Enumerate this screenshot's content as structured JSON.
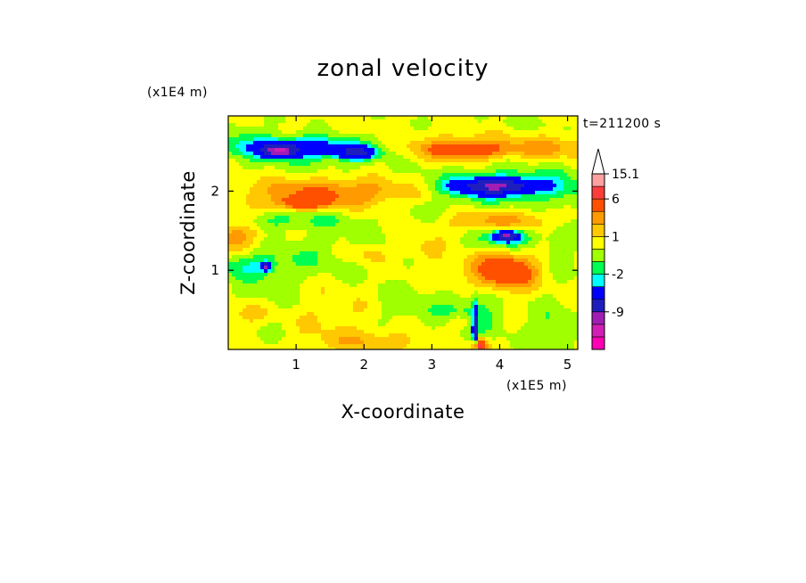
{
  "chart_data": {
    "type": "heatmap",
    "title": "zonal velocity",
    "xlabel": "X-coordinate",
    "ylabel": "Z-coordinate",
    "x_unit": "(x1E5 m)",
    "y_unit": "(x1E4 m)",
    "time_label": "t=211200 s",
    "xlim": [
      0,
      5.15
    ],
    "ylim": [
      0,
      2.95
    ],
    "x_ticks": [
      1,
      2,
      3,
      4,
      5
    ],
    "y_ticks": [
      1,
      2
    ],
    "colorbar": {
      "levels": [
        -15,
        -12,
        -9,
        -6,
        -3,
        -2,
        -1,
        0,
        1,
        2,
        3,
        6,
        9,
        12,
        15.1
      ],
      "labels": [
        "15.1",
        "6",
        "1",
        "-2",
        "-9"
      ],
      "colors": [
        "#ff00b4",
        "#d21eb4",
        "#a01eb4",
        "#1e1ebe",
        "#0000ff",
        "#00ffff",
        "#00ff50",
        "#a0ff00",
        "#ffff00",
        "#ffc800",
        "#ff9b00",
        "#ff5000",
        "#ff3c3c",
        "#ffa0a0",
        "#ffffff"
      ],
      "extend": "max"
    },
    "background_value": 0.3,
    "blobs": [
      {
        "x": 0.95,
        "z": 2.55,
        "a": 0.85,
        "b": 0.12,
        "v": -5
      },
      {
        "x": 0.75,
        "z": 2.5,
        "a": 0.2,
        "b": 0.07,
        "v": -9
      },
      {
        "x": 1.9,
        "z": 2.48,
        "a": 0.28,
        "b": 0.08,
        "v": -6
      },
      {
        "x": 1.2,
        "z": 2.45,
        "a": 1.3,
        "b": 0.25,
        "v": -1
      },
      {
        "x": 3.55,
        "z": 2.52,
        "a": 0.65,
        "b": 0.1,
        "v": 3
      },
      {
        "x": 3.4,
        "z": 2.55,
        "a": 0.85,
        "b": 0.2,
        "v": 1.5
      },
      {
        "x": 4.8,
        "z": 2.55,
        "a": 0.6,
        "b": 0.14,
        "v": 2
      },
      {
        "x": 4.2,
        "z": 2.85,
        "a": 1.0,
        "b": 0.1,
        "v": -0.5
      },
      {
        "x": 1.5,
        "z": 1.98,
        "a": 1.2,
        "b": 0.18,
        "v": 3
      },
      {
        "x": 1.1,
        "z": 1.85,
        "a": 0.35,
        "b": 0.08,
        "v": 4
      },
      {
        "x": 3.9,
        "z": 2.05,
        "a": 0.95,
        "b": 0.28,
        "v": -2
      },
      {
        "x": 3.95,
        "z": 2.06,
        "a": 0.6,
        "b": 0.1,
        "v": -8
      },
      {
        "x": 4.9,
        "z": 2.1,
        "a": 0.45,
        "b": 0.25,
        "v": -1
      },
      {
        "x": 4.1,
        "z": 1.62,
        "a": 0.8,
        "b": 0.15,
        "v": 2.5
      },
      {
        "x": 4.1,
        "z": 1.42,
        "a": 0.45,
        "b": 0.15,
        "v": -3
      },
      {
        "x": 4.1,
        "z": 1.43,
        "a": 0.18,
        "b": 0.06,
        "v": -8
      },
      {
        "x": 3.2,
        "z": 1.25,
        "a": 0.35,
        "b": 0.1,
        "v": -1.5
      },
      {
        "x": 0.55,
        "z": 1.62,
        "a": 0.6,
        "b": 0.12,
        "v": -1.5
      },
      {
        "x": 1.5,
        "z": 1.65,
        "a": 0.6,
        "b": 0.13,
        "v": -1
      },
      {
        "x": 0.1,
        "z": 1.45,
        "a": 0.4,
        "b": 0.2,
        "v": 2.5
      },
      {
        "x": 0.3,
        "z": 1.05,
        "a": 0.55,
        "b": 0.15,
        "v": -2
      },
      {
        "x": 0.55,
        "z": 1.05,
        "a": 0.06,
        "b": 0.05,
        "v": -8
      },
      {
        "x": 1.3,
        "z": 1.2,
        "a": 1.1,
        "b": 0.3,
        "v": -1
      },
      {
        "x": 3.0,
        "z": 1.25,
        "a": 0.35,
        "b": 0.12,
        "v": 2
      },
      {
        "x": 4.0,
        "z": 1.0,
        "a": 0.65,
        "b": 0.3,
        "v": 2
      },
      {
        "x": 4.1,
        "z": 0.98,
        "a": 0.35,
        "b": 0.18,
        "v": 3.5
      },
      {
        "x": 4.9,
        "z": 1.35,
        "a": 0.3,
        "b": 0.6,
        "v": -1
      },
      {
        "x": 0.45,
        "z": 0.55,
        "a": 0.5,
        "b": 0.35,
        "v": -1
      },
      {
        "x": 0.3,
        "z": 0.45,
        "a": 0.35,
        "b": 0.15,
        "v": 2
      },
      {
        "x": 1.6,
        "z": 0.42,
        "a": 0.7,
        "b": 0.35,
        "v": 0.8
      },
      {
        "x": 2.6,
        "z": 0.55,
        "a": 0.55,
        "b": 0.25,
        "v": -1
      },
      {
        "x": 3.6,
        "z": 0.45,
        "a": 0.45,
        "b": 0.3,
        "v": -2
      },
      {
        "x": 3.45,
        "z": 0.35,
        "a": 0.2,
        "b": 0.1,
        "v": 2
      },
      {
        "x": 3.64,
        "z": 0.25,
        "a": 0.035,
        "b": 0.28,
        "v": -8
      },
      {
        "x": 3.7,
        "z": 0.05,
        "a": 0.1,
        "b": 0.08,
        "v": 8
      },
      {
        "x": 4.75,
        "z": 0.25,
        "a": 0.3,
        "b": 0.3,
        "v": -1.5
      },
      {
        "x": 2.2,
        "z": 0.1,
        "a": 0.8,
        "b": 0.12,
        "v": 1.5
      },
      {
        "x": 0.2,
        "z": 2.75,
        "a": 0.35,
        "b": 0.12,
        "v": -1
      },
      {
        "x": 2.9,
        "z": 1.78,
        "a": 0.5,
        "b": 0.12,
        "v": -0.6
      },
      {
        "x": 2.05,
        "z": 1.2,
        "a": 0.35,
        "b": 0.12,
        "v": 1.5
      }
    ]
  }
}
